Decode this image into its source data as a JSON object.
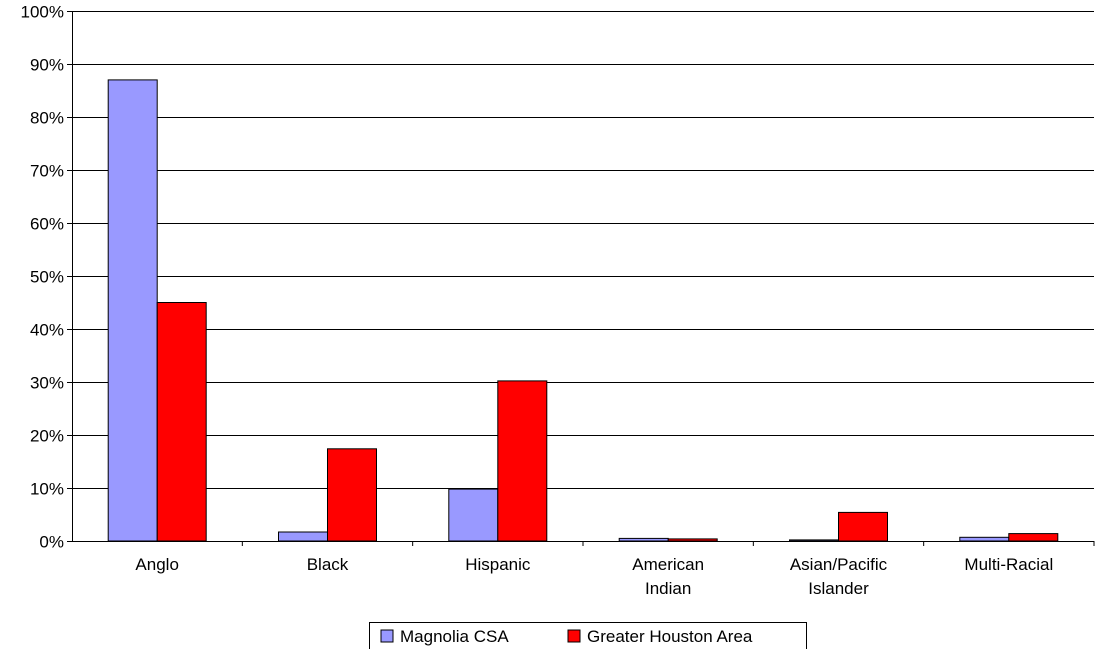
{
  "chart_data": {
    "type": "bar",
    "title": "",
    "xlabel": "",
    "ylabel": "",
    "categories": [
      [
        "Anglo"
      ],
      [
        "Black"
      ],
      [
        "Hispanic"
      ],
      [
        "American",
        "Indian"
      ],
      [
        "Asian/Pacific",
        "Islander"
      ],
      [
        "Multi-Racial"
      ]
    ],
    "series": [
      {
        "name": "Magnolia CSA",
        "color": "#9999ff",
        "values": [
          87.0,
          1.7,
          9.8,
          0.5,
          0.2,
          0.7
        ]
      },
      {
        "name": "Greater Houston Area",
        "color": "#ff0000",
        "values": [
          45.0,
          17.4,
          30.2,
          0.4,
          5.4,
          1.4
        ]
      }
    ],
    "ylim": [
      0,
      100
    ],
    "yticks": [
      0,
      10,
      20,
      30,
      40,
      50,
      60,
      70,
      80,
      90,
      100
    ],
    "ytick_labels": [
      "0%",
      "10%",
      "20%",
      "30%",
      "40%",
      "50%",
      "60%",
      "70%",
      "80%",
      "90%",
      "100%"
    ],
    "grid": true,
    "legend_position": "bottom"
  }
}
